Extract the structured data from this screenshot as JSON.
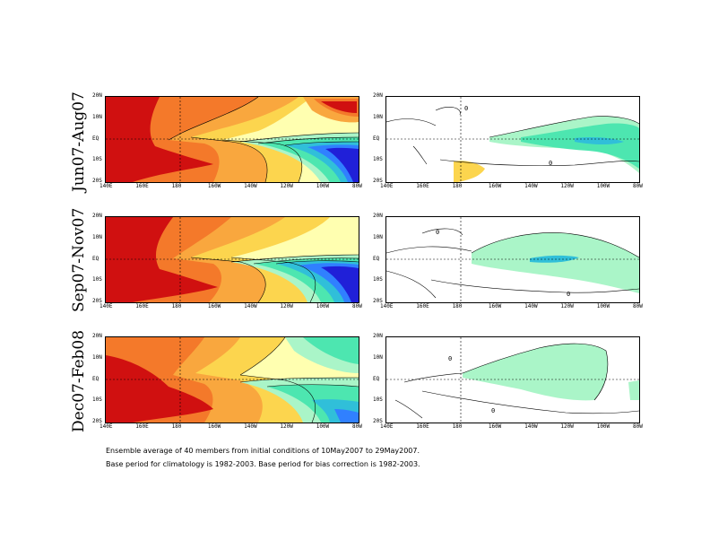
{
  "rows": [
    {
      "label": "Jun07-Aug07"
    },
    {
      "label": "Sep07-Nov07"
    },
    {
      "label": "Dec07-Feb08"
    }
  ],
  "axes": {
    "x_ticks": [
      "140E",
      "160E",
      "180",
      "160W",
      "140W",
      "120W",
      "100W",
      "80W"
    ],
    "y_ticks": [
      "20N",
      "10N",
      "EQ",
      "10S",
      "20S"
    ]
  },
  "contour_labels": {
    "zero": "0"
  },
  "footer": {
    "line1": "Ensemble average of 40 members from initial conditions of 10May2007 to 29May2007.",
    "line2": "Base period for climatology is 1982-2003. Base period for bias correction is 1982-2003."
  },
  "colors": {
    "warm_1": "#d01010",
    "warm_2": "#f4792a",
    "warm_3": "#f9a73e",
    "warm_4": "#fcd54e",
    "warm_5": "#ffffb0",
    "cool_1": "#aaf5c8",
    "cool_2": "#4de6b0",
    "cool_3": "#30bfd9",
    "cool_4": "#3080ff",
    "cool_5": "#2020d8"
  }
}
